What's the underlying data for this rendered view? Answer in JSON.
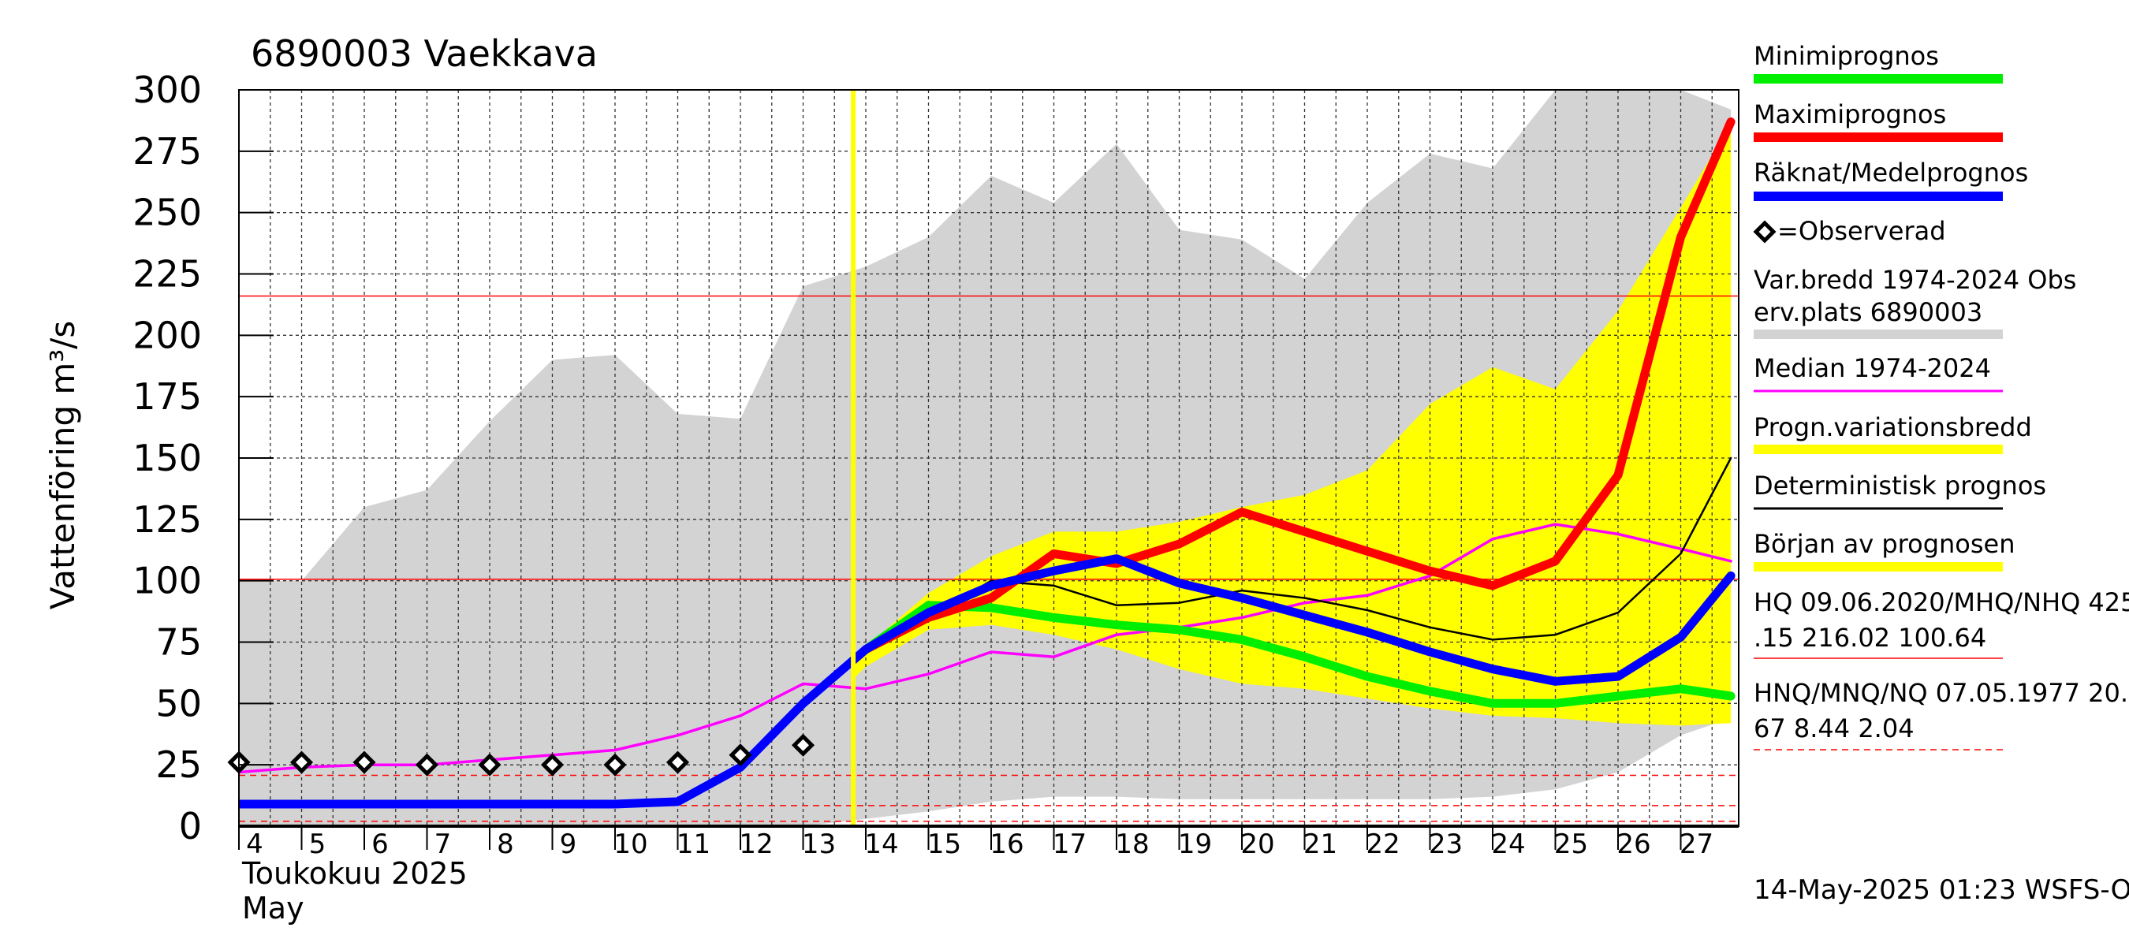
{
  "chart_data": {
    "type": "line",
    "title": "6890003 Vaekkava",
    "ylabel": "Vattenföring m³/s",
    "xlabel_lines": [
      "Toukokuu  2025",
      "May"
    ],
    "ylim": [
      0,
      300
    ],
    "yticks": [
      0,
      25,
      50,
      75,
      100,
      125,
      150,
      175,
      200,
      225,
      250,
      275,
      300
    ],
    "xlim": [
      4,
      27.8
    ],
    "xticks": [
      4,
      5,
      6,
      7,
      8,
      9,
      10,
      11,
      12,
      13,
      14,
      15,
      16,
      17,
      18,
      19,
      20,
      21,
      22,
      23,
      24,
      25,
      26,
      27
    ],
    "grid": true,
    "legend_position": "right",
    "footer": "14-May-2025 01:23 WSFS-O",
    "forecast_start": 13.8,
    "hq_lines": [
      216,
      100.6
    ],
    "lower_ref_lines": [
      20.7,
      8.4,
      2.0
    ],
    "variation_band": {
      "x": [
        4,
        5,
        6,
        7,
        8,
        9,
        10,
        11,
        12,
        13,
        14,
        15,
        16,
        17,
        18,
        19,
        20,
        21,
        22,
        23,
        24,
        25,
        26,
        27,
        27.8
      ],
      "upper": [
        100,
        100,
        130,
        137,
        165,
        190,
        192,
        168,
        166,
        220,
        228,
        240,
        265,
        254,
        278,
        243,
        239,
        223,
        254,
        274,
        268,
        300,
        300,
        300,
        292
      ],
      "lower": [
        0,
        0,
        0,
        0,
        0,
        0,
        0,
        0,
        0,
        0,
        3,
        6,
        10,
        12,
        12,
        11,
        11,
        11,
        11,
        11,
        12,
        15,
        22,
        37,
        44
      ]
    },
    "prognosis_band": {
      "x": [
        13.8,
        14,
        15,
        16,
        17,
        18,
        19,
        20,
        21,
        22,
        23,
        24,
        25,
        26,
        27,
        27.8
      ],
      "upper": [
        68,
        73,
        95,
        110,
        120,
        120,
        124,
        130,
        135,
        145,
        172,
        187,
        178,
        210,
        252,
        286
      ],
      "lower": [
        60,
        65,
        80,
        82,
        78,
        72,
        64,
        58,
        56,
        52,
        48,
        45,
        44,
        42,
        41,
        42
      ]
    },
    "series": [
      {
        "name": "Minimiprognos",
        "color": "#00ee00",
        "width": 11,
        "x": [
          14,
          15,
          16,
          17,
          18,
          19,
          20,
          21,
          22,
          23,
          24,
          25,
          26,
          27,
          27.8
        ],
        "values": [
          72,
          90,
          89,
          85,
          82,
          80,
          76,
          69,
          61,
          55,
          50,
          50,
          53,
          56,
          53
        ]
      },
      {
        "name": "Maximiprognos",
        "color": "#ff0000",
        "width": 11,
        "x": [
          14,
          15,
          16,
          17,
          18,
          19,
          20,
          21,
          22,
          23,
          24,
          25,
          26,
          27,
          27.8
        ],
        "values": [
          72,
          85,
          93,
          111,
          107,
          115,
          128,
          120,
          112,
          104,
          98,
          108,
          143,
          240,
          287
        ]
      },
      {
        "name": "Räknat/Medelprognos",
        "color": "#0000ff",
        "width": 11,
        "x": [
          4,
          5,
          6,
          7,
          8,
          9,
          10,
          11,
          12,
          13,
          14,
          15,
          16,
          17,
          18,
          19,
          20,
          21,
          22,
          23,
          24,
          25,
          26,
          27,
          27.8
        ],
        "values": [
          9,
          9,
          9,
          9,
          9,
          9,
          9,
          10,
          24,
          50,
          72,
          87,
          98,
          104,
          109,
          99,
          93,
          86,
          79,
          71,
          64,
          59,
          61,
          77,
          102
        ]
      },
      {
        "name": "Median 1974-2024",
        "color": "#ff00ff",
        "width": 3.5,
        "x": [
          4,
          5,
          6,
          7,
          8,
          9,
          10,
          11,
          12,
          13,
          14,
          15,
          16,
          17,
          18,
          19,
          20,
          21,
          22,
          23,
          24,
          25,
          26,
          27,
          27.8
        ],
        "values": [
          22,
          24,
          25,
          25,
          27,
          29,
          31,
          37,
          45,
          58,
          56,
          62,
          71,
          69,
          78,
          81,
          85,
          91,
          94,
          102,
          117,
          123,
          119,
          113,
          108
        ]
      },
      {
        "name": "Deterministisk prognos",
        "color": "#000000",
        "width": 2.5,
        "x": [
          14,
          15,
          16,
          17,
          18,
          19,
          20,
          21,
          22,
          23,
          24,
          25,
          26,
          27,
          27.8
        ],
        "values": [
          72,
          85,
          100,
          98,
          90,
          91,
          96,
          93,
          88,
          81,
          76,
          78,
          87,
          111,
          150
        ]
      }
    ],
    "observed": {
      "name": "=Observerad",
      "x": [
        4,
        5,
        6,
        7,
        8,
        9,
        10,
        11,
        12,
        13
      ],
      "values": [
        26,
        26,
        26,
        25,
        25,
        25,
        25,
        26,
        29,
        33
      ]
    },
    "legend": [
      {
        "label": "Minimiprognos",
        "swatch": "#00ee00",
        "thick": true
      },
      {
        "label": "Maximiprognos",
        "swatch": "#ff0000",
        "thick": true
      },
      {
        "label": "Räknat/Medelprognos",
        "swatch": "#0000ff",
        "thick": true
      },
      {
        "label": "=Observerad",
        "marker": true
      },
      {
        "label": "Var.bredd 1974-2024   Obs",
        "label2": "erv.plats 6890003",
        "swatch": "#d3d3d3",
        "thick": true
      },
      {
        "label": "Median 1974-2024",
        "swatch": "#ff00ff",
        "thick": false
      },
      {
        "label": "Progn.variationsbredd",
        "swatch": "#ffff00",
        "thick": true
      },
      {
        "label": "Deterministisk prognos",
        "swatch": "#000000",
        "thick": false
      },
      {
        "label": "Början av prognosen",
        "swatch": "#ffff00",
        "thick": true
      },
      {
        "label": "HQ 09.06.2020/MHQ/NHQ 425",
        "label2": ".15 216.02 100.64",
        "swatch": "#ff0000",
        "thin": true
      },
      {
        "label": "HNQ/MNQ/NQ 07.05.1977 20.",
        "label2": "67 8.44 2.04",
        "swatch": "#ff0000",
        "thin": true,
        "dashed": true
      }
    ]
  }
}
